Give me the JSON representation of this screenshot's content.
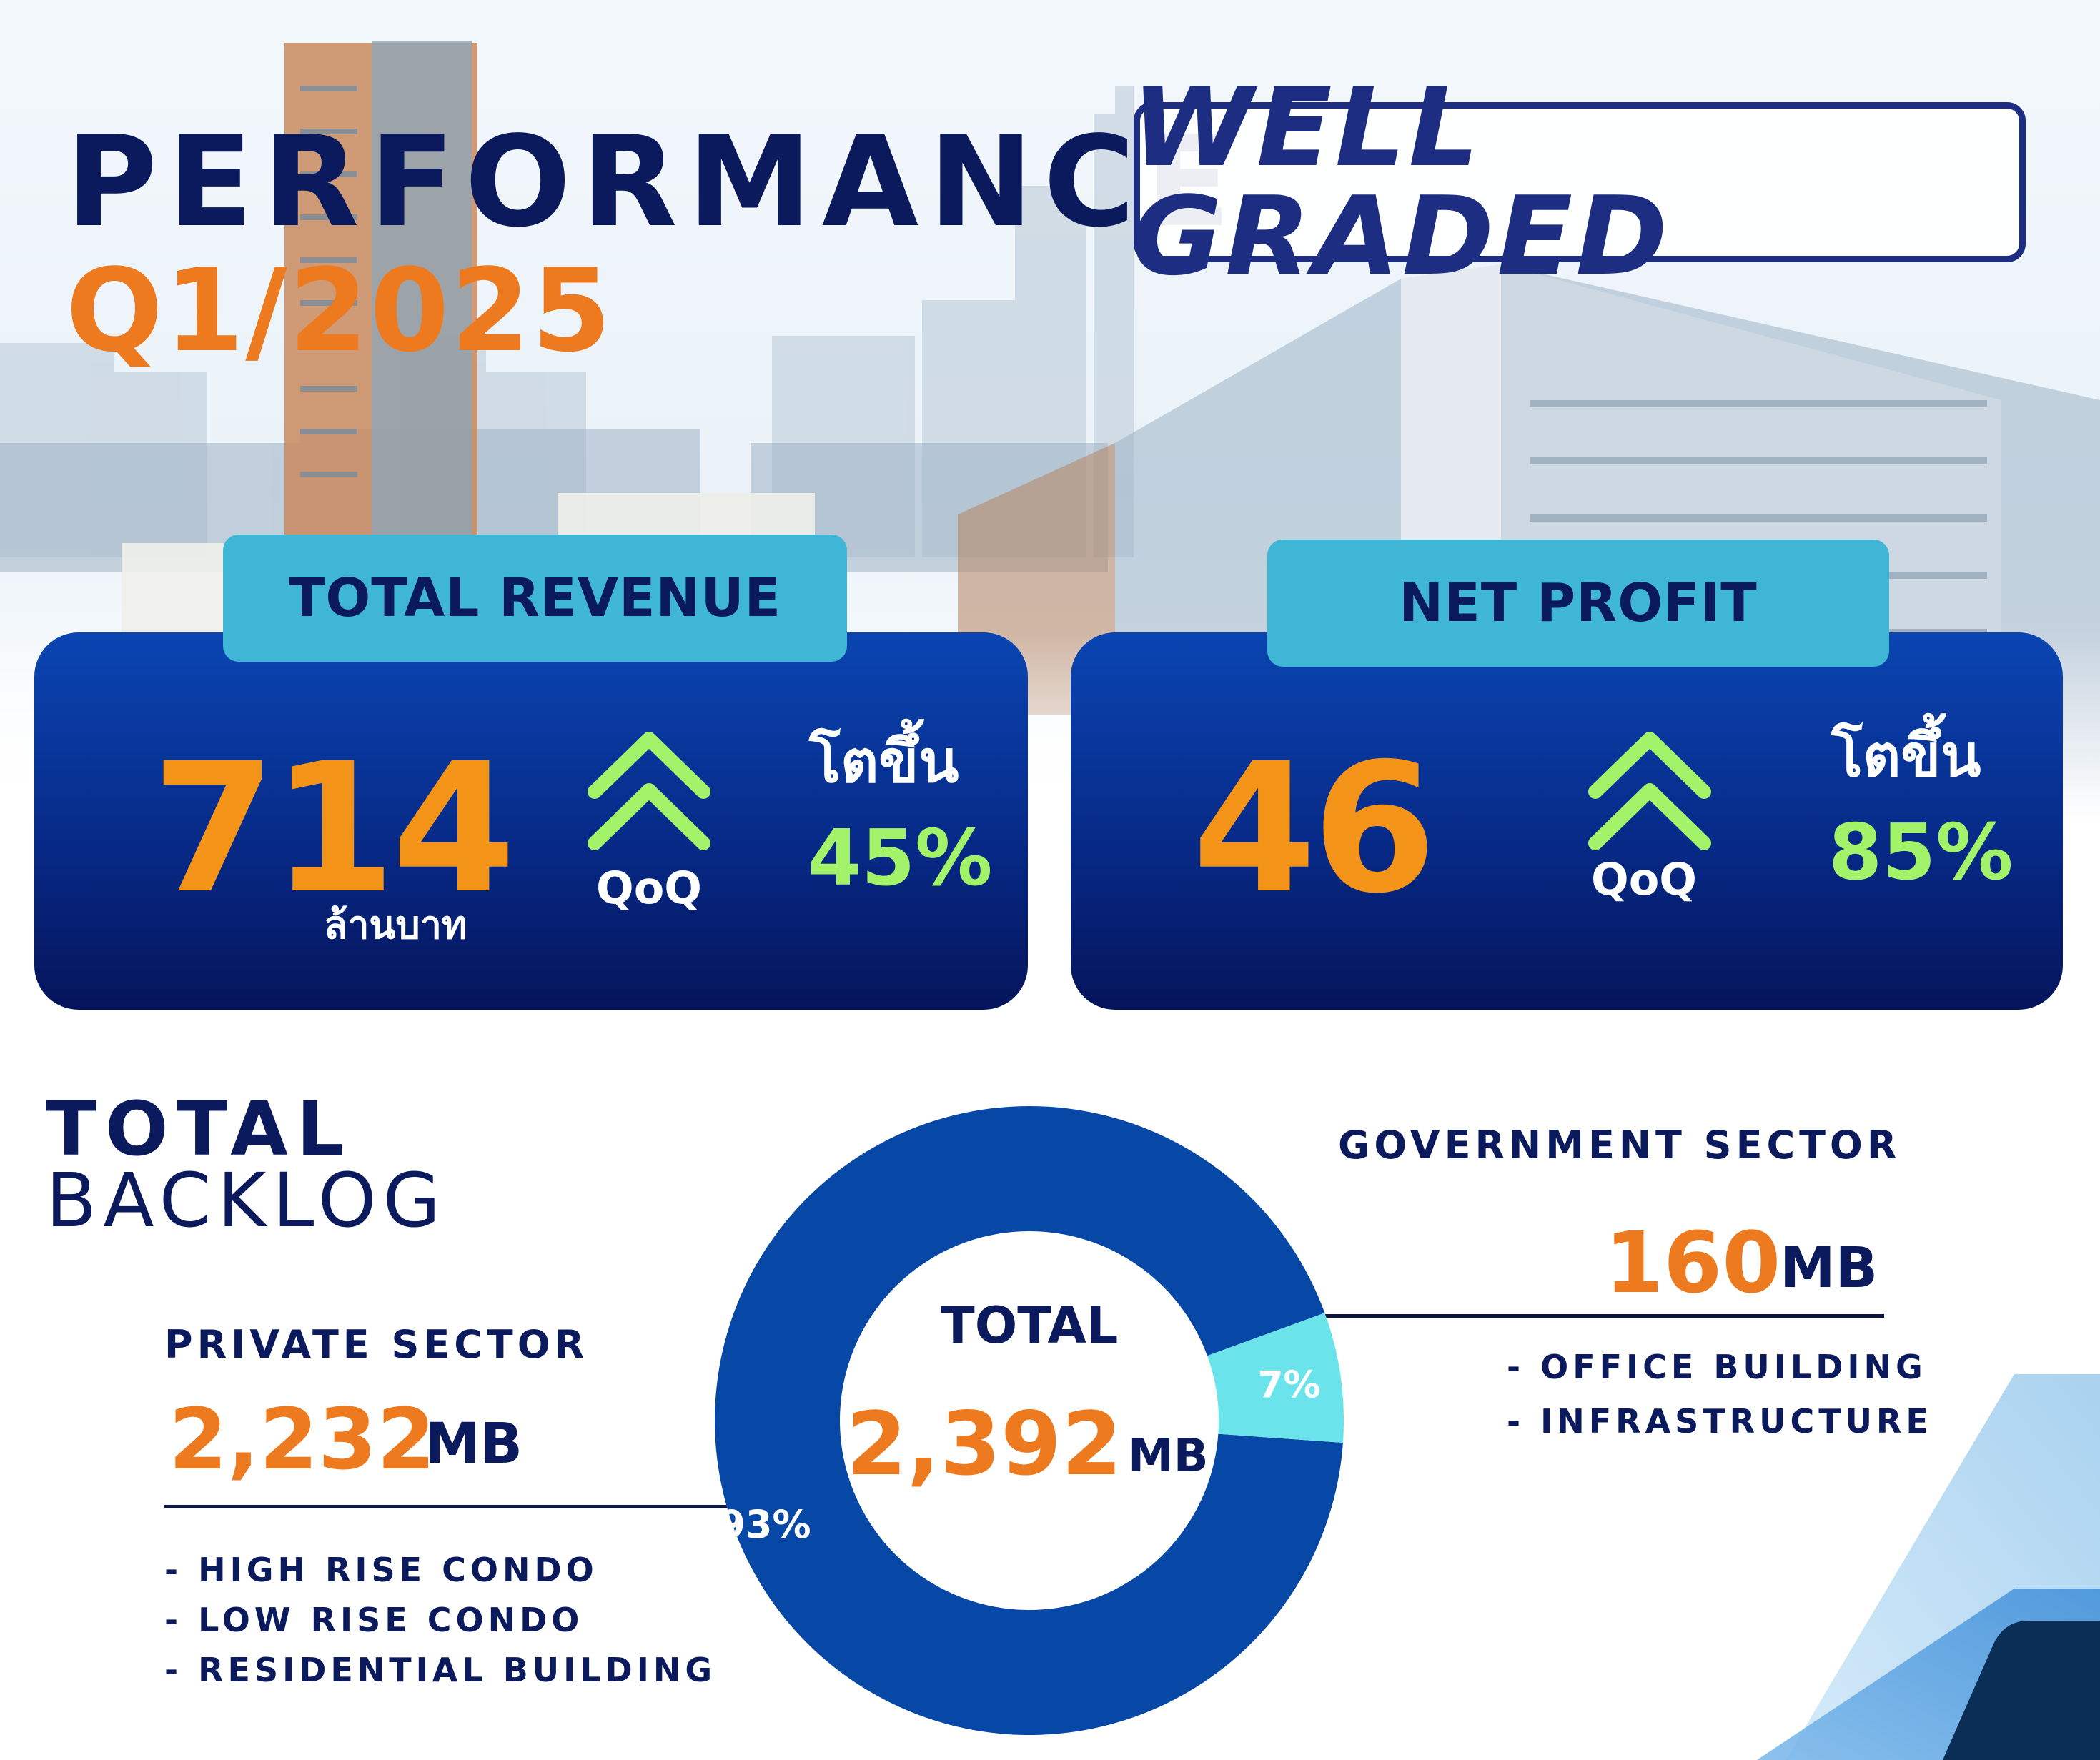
{
  "header": {
    "title": "PERFORMANCE",
    "period": "Q1/2025",
    "brand": "WELL GRADED"
  },
  "kpis": [
    {
      "label": "TOTAL REVENUE",
      "value": "714",
      "unit": "ล้านบาท",
      "comparison": "QoQ",
      "growth_label": "โตขึ้น",
      "growth": "45%"
    },
    {
      "label": "NET PROFIT",
      "value": "46",
      "comparison": "QoQ",
      "growth_label": "โตขึ้น",
      "growth": "85%"
    }
  ],
  "backlog": {
    "title_line1": "TOTAL",
    "title_line2": "BACKLOG",
    "center_label": "TOTAL",
    "center_value": "2,392",
    "center_unit": "MB",
    "private": {
      "title": "PRIVATE SECTOR",
      "value": "2,232",
      "unit": "MB",
      "items": [
        "- HIGH RISE CONDO",
        "- LOW RISE CONDO",
        "- RESIDENTIAL BUILDING"
      ]
    },
    "government": {
      "title": "GOVERNMENT SECTOR",
      "value": "160",
      "unit": "MB",
      "items": [
        "- OFFICE BUILDING",
        "- INFRASTRUCTURE"
      ]
    }
  },
  "colors": {
    "navy": "#0b1a5c",
    "orange": "#ee7a1f",
    "green": "#a3f36a",
    "private_slice": "#0747a6",
    "government_slice": "#6be3ea"
  },
  "chart_data": {
    "type": "pie",
    "title": "TOTAL BACKLOG",
    "categories": [
      "PRIVATE SECTOR",
      "GOVERNMENT SECTOR"
    ],
    "values": [
      2232,
      160
    ],
    "percent_labels": [
      "93%",
      "7%"
    ],
    "total": 2392,
    "unit": "MB",
    "donut": true
  }
}
